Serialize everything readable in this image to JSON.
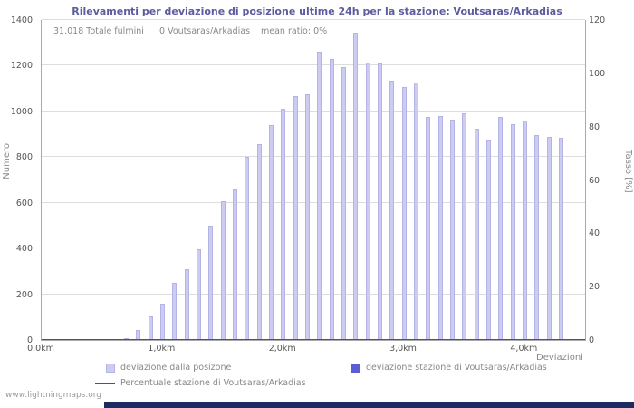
{
  "title": "Rilevamenti per deviazione di posizione ultime 24h per la stazione: Voutsaras/Arkadias",
  "annotations": {
    "total": "31.018 Totale fulmini",
    "station": "0 Voutsaras/Arkadias",
    "mean_ratio": "mean ratio: 0%"
  },
  "axes": {
    "left_label": "Numero",
    "right_label": "Tasso [%]",
    "x_label": "Deviazioni",
    "left_ticks": [
      0,
      200,
      400,
      600,
      800,
      1000,
      1200,
      1400
    ],
    "right_ticks": [
      0,
      20,
      40,
      60,
      80,
      100,
      120
    ],
    "x_ticks": [
      {
        "value": 0,
        "label": "0,0km"
      },
      {
        "value": 1,
        "label": "1,0km"
      },
      {
        "value": 2,
        "label": "2,0km"
      },
      {
        "value": 3,
        "label": "3,0km"
      },
      {
        "value": 4,
        "label": "4,0km"
      }
    ]
  },
  "legend": [
    {
      "label": "deviazione dalla posizone"
    },
    {
      "label": "deviazione stazione di Voutsaras/Arkadias"
    },
    {
      "label": "Percentuale stazione di Voutsaras/Arkadias"
    }
  ],
  "footer": "www.lightningmaps.org",
  "colors": {
    "title": "#5c5c9e",
    "text": "#888888",
    "tick": "#555555",
    "axis": "#aaaaaa",
    "grid": "#dddddd",
    "bar": "#ccccf2",
    "bar_border": "#b3b3e6",
    "station": "#5c5cd6",
    "line": "#cc00cc",
    "bottom_bar": "#1d2b63"
  },
  "chart_data": {
    "type": "bar",
    "title": "Rilevamenti per deviazione di posizione ultime 24h per la stazione: Voutsaras/Arkadias",
    "xlabel": "Deviazioni",
    "ylabel": "Numero",
    "y2label": "Tasso [%]",
    "xlim": [
      0,
      4.5
    ],
    "ylim": [
      0,
      1400
    ],
    "y2lim": [
      0,
      120
    ],
    "grid": "horizontal",
    "legend_position": "bottom",
    "x": [
      0,
      0.1,
      0.2,
      0.3,
      0.4,
      0.5,
      0.6,
      0.7,
      0.8,
      0.9,
      1,
      1.1,
      1.2,
      1.3,
      1.4,
      1.5,
      1.6,
      1.7,
      1.8,
      1.9,
      2,
      2.1,
      2.2,
      2.3,
      2.4,
      2.5,
      2.6,
      2.7,
      2.8,
      2.9,
      3,
      3.1,
      3.2,
      3.3,
      3.4,
      3.5,
      3.6,
      3.7,
      3.8,
      3.9,
      4,
      4.1,
      4.2,
      4.3
    ],
    "series": [
      {
        "name": "deviazione dalla posizone",
        "type": "bar",
        "axis": "left",
        "values": [
          0,
          0,
          0,
          0,
          0,
          2,
          3,
          8,
          45,
          105,
          160,
          250,
          310,
          395,
          500,
          605,
          660,
          800,
          855,
          940,
          1010,
          1065,
          1075,
          1260,
          1230,
          1195,
          1345,
          1215,
          1210,
          1135,
          1105,
          1125,
          975,
          980,
          965,
          990,
          925,
          875,
          975,
          945,
          960,
          895,
          890,
          885
        ]
      },
      {
        "name": "deviazione stazione di Voutsaras/Arkadias",
        "type": "bar",
        "axis": "left",
        "values": [
          0,
          0,
          0,
          0,
          0,
          0,
          0,
          0,
          0,
          0,
          0,
          0,
          0,
          0,
          0,
          0,
          0,
          0,
          0,
          0,
          0,
          0,
          0,
          0,
          0,
          0,
          0,
          0,
          0,
          0,
          0,
          0,
          0,
          0,
          0,
          0,
          0,
          0,
          0,
          0,
          0,
          0,
          0,
          0
        ]
      },
      {
        "name": "Percentuale stazione di Voutsaras/Arkadias",
        "type": "line",
        "axis": "right",
        "values": [
          0,
          0,
          0,
          0,
          0,
          0,
          0,
          0,
          0,
          0,
          0,
          0,
          0,
          0,
          0,
          0,
          0,
          0,
          0,
          0,
          0,
          0,
          0,
          0,
          0,
          0,
          0,
          0,
          0,
          0,
          0,
          0,
          0,
          0,
          0,
          0,
          0,
          0,
          0,
          0,
          0,
          0,
          0,
          0
        ]
      }
    ]
  }
}
